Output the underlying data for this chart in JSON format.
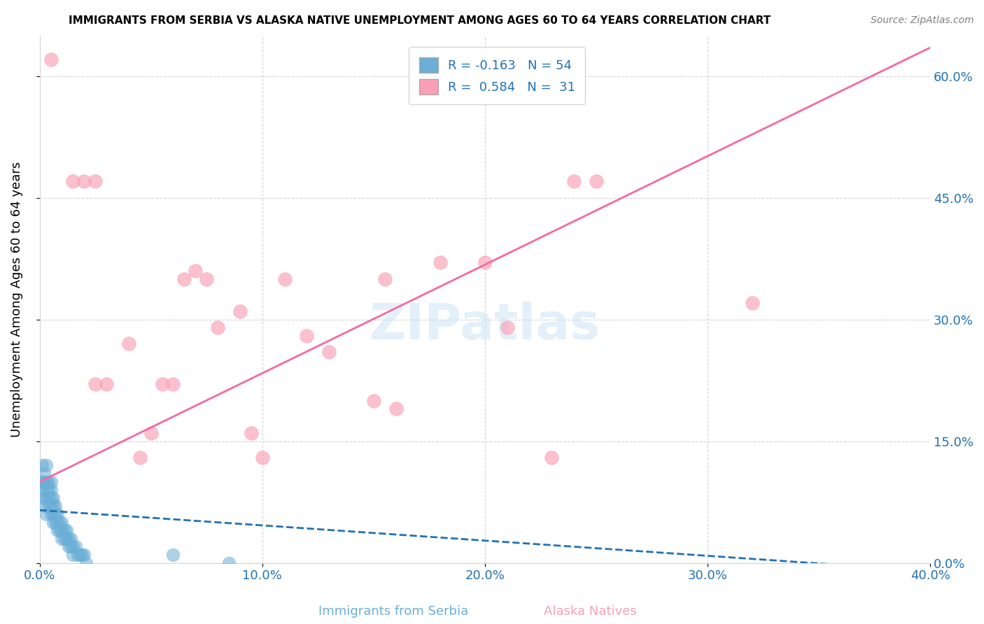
{
  "title": "IMMIGRANTS FROM SERBIA VS ALASKA NATIVE UNEMPLOYMENT AMONG AGES 60 TO 64 YEARS CORRELATION CHART",
  "source": "Source: ZipAtlas.com",
  "ylabel": "Unemployment Among Ages 60 to 64 years",
  "xlabel_blue": "Immigrants from Serbia",
  "xlabel_pink": "Alaska Natives",
  "watermark": "ZIPatlas",
  "legend_blue_R": "R = -0.163",
  "legend_blue_N": "N = 54",
  "legend_pink_R": "R =  0.584",
  "legend_pink_N": "N =  31",
  "xlim": [
    0.0,
    0.4
  ],
  "ylim": [
    0.0,
    0.65
  ],
  "xticks": [
    0.0,
    0.1,
    0.2,
    0.3,
    0.4
  ],
  "yticks": [
    0.0,
    0.15,
    0.3,
    0.45,
    0.6
  ],
  "blue_color": "#6baed6",
  "pink_color": "#fa9fb5",
  "blue_line_color": "#2171b5",
  "pink_line_color": "#f768a1",
  "background_color": "#ffffff",
  "blue_scatter_x": [
    0.001,
    0.001,
    0.001,
    0.002,
    0.002,
    0.002,
    0.002,
    0.003,
    0.003,
    0.003,
    0.003,
    0.003,
    0.004,
    0.004,
    0.004,
    0.004,
    0.005,
    0.005,
    0.005,
    0.005,
    0.005,
    0.006,
    0.006,
    0.006,
    0.006,
    0.007,
    0.007,
    0.007,
    0.008,
    0.008,
    0.008,
    0.009,
    0.009,
    0.01,
    0.01,
    0.01,
    0.011,
    0.011,
    0.012,
    0.012,
    0.013,
    0.013,
    0.014,
    0.014,
    0.015,
    0.015,
    0.016,
    0.017,
    0.018,
    0.019,
    0.02,
    0.021,
    0.06,
    0.085
  ],
  "blue_scatter_y": [
    0.12,
    0.1,
    0.09,
    0.11,
    0.1,
    0.08,
    0.07,
    0.12,
    0.1,
    0.09,
    0.08,
    0.06,
    0.1,
    0.09,
    0.08,
    0.07,
    0.1,
    0.09,
    0.08,
    0.07,
    0.06,
    0.08,
    0.07,
    0.06,
    0.05,
    0.07,
    0.06,
    0.05,
    0.06,
    0.05,
    0.04,
    0.05,
    0.04,
    0.05,
    0.04,
    0.03,
    0.04,
    0.03,
    0.04,
    0.03,
    0.03,
    0.02,
    0.03,
    0.02,
    0.02,
    0.01,
    0.02,
    0.01,
    0.01,
    0.01,
    0.01,
    0.0,
    0.01,
    0.0
  ],
  "pink_scatter_x": [
    0.005,
    0.015,
    0.02,
    0.025,
    0.025,
    0.03,
    0.04,
    0.045,
    0.05,
    0.055,
    0.06,
    0.065,
    0.07,
    0.075,
    0.08,
    0.09,
    0.095,
    0.1,
    0.11,
    0.12,
    0.13,
    0.15,
    0.155,
    0.16,
    0.18,
    0.2,
    0.21,
    0.23,
    0.24,
    0.25,
    0.32
  ],
  "pink_scatter_y": [
    0.62,
    0.47,
    0.47,
    0.22,
    0.47,
    0.22,
    0.27,
    0.13,
    0.16,
    0.22,
    0.22,
    0.35,
    0.36,
    0.35,
    0.29,
    0.31,
    0.16,
    0.13,
    0.35,
    0.28,
    0.26,
    0.2,
    0.35,
    0.19,
    0.37,
    0.37,
    0.29,
    0.13,
    0.47,
    0.47,
    0.32
  ],
  "pink_trendline_x": [
    0.0,
    0.4
  ],
  "pink_trendline_y": [
    0.1,
    0.635
  ],
  "blue_trendline_x": [
    0.0,
    0.4
  ],
  "blue_trendline_y": [
    0.065,
    -0.01
  ]
}
